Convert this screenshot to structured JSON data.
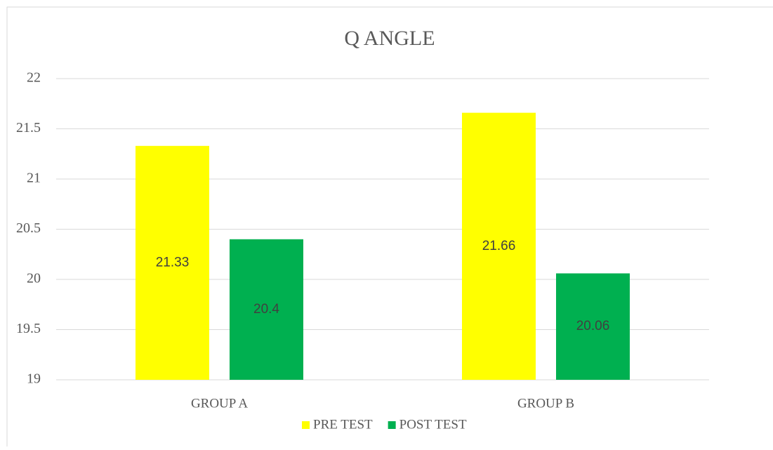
{
  "chart_data": {
    "type": "bar",
    "title": "Q ANGLE",
    "categories": [
      "GROUP A",
      "GROUP B"
    ],
    "series": [
      {
        "name": "PRE TEST",
        "color": "#ffff00",
        "values": [
          21.33,
          21.66
        ]
      },
      {
        "name": "POST TEST",
        "color": "#00b050",
        "values": [
          20.4,
          20.06
        ]
      }
    ],
    "ylim": [
      19,
      22
    ],
    "yticks": [
      19,
      19.5,
      20,
      20.5,
      21,
      21.5,
      22
    ],
    "grid": true,
    "legend": "bottom"
  }
}
